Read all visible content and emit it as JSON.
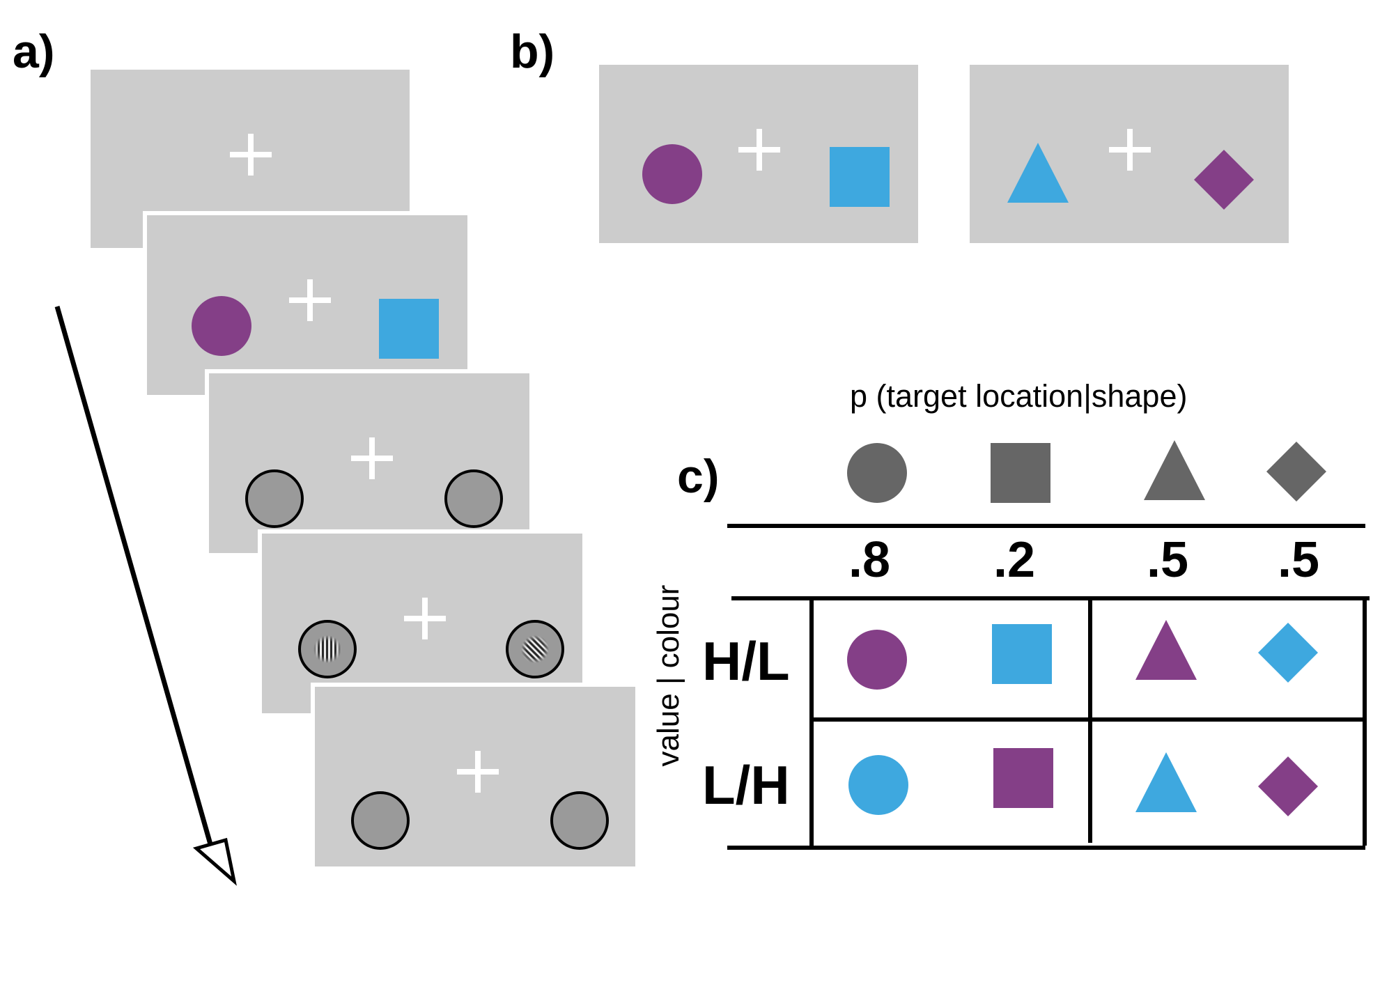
{
  "panels": {
    "a": "a)",
    "b": "b)",
    "c": "c)"
  },
  "table": {
    "header": "p (target location|shape)",
    "column_shapes": [
      "circle",
      "square",
      "triangle",
      "diamond"
    ],
    "probabilities": [
      ".8",
      ".2",
      ".5",
      ".5"
    ],
    "row_axis_label": "value | colour",
    "rows": [
      {
        "label": "H/L",
        "colours": [
          "purple",
          "blue",
          "purple",
          "blue"
        ]
      },
      {
        "label": "L/H",
        "colours": [
          "blue",
          "purple",
          "blue",
          "purple"
        ]
      }
    ]
  },
  "colors": {
    "purple": "#843f87",
    "blue": "#3ea8df",
    "screen_gray": "#cccccc",
    "placeholder_gray": "#9a9a9a",
    "header_shape_gray": "#666666",
    "fixation_cross": "#ffffff"
  },
  "icons": {
    "fixation": "fixation-cross-icon",
    "time_arrow": "time-arrow-icon"
  }
}
